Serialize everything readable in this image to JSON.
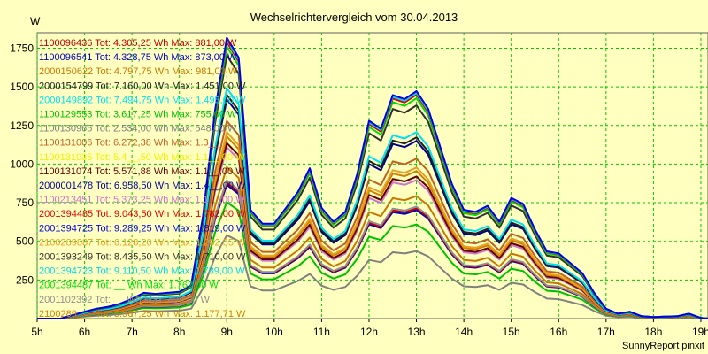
{
  "chart_data": {
    "type": "line",
    "title": "Wechselrichtervergleich vom 30.04.2013",
    "ylabel": "W",
    "footer": "SunnyReport pinxit",
    "xlim": [
      5,
      19.15
    ],
    "ylim": [
      0,
      1850
    ],
    "grid": true,
    "legend_position": "top-left",
    "x_ticks": [
      {
        "v": 5,
        "label": "5h"
      },
      {
        "v": 6,
        "label": "6h"
      },
      {
        "v": 7,
        "label": "7h"
      },
      {
        "v": 8,
        "label": "8h"
      },
      {
        "v": 9,
        "label": "9h"
      },
      {
        "v": 10,
        "label": "10h"
      },
      {
        "v": 11,
        "label": "11h"
      },
      {
        "v": 12,
        "label": "12h"
      },
      {
        "v": 13,
        "label": "13h"
      },
      {
        "v": 14,
        "label": "14h"
      },
      {
        "v": 15,
        "label": "15h"
      },
      {
        "v": 16,
        "label": "16h"
      },
      {
        "v": 17,
        "label": "17h"
      },
      {
        "v": 18,
        "label": "18h"
      },
      {
        "v": 19,
        "label": "19h"
      }
    ],
    "y_ticks": [
      250,
      500,
      750,
      1000,
      1250,
      1500,
      1750
    ],
    "x": [
      5.0,
      5.5,
      6.0,
      6.25,
      6.5,
      6.75,
      7.0,
      7.25,
      7.5,
      7.75,
      8.0,
      8.25,
      8.5,
      8.75,
      9.0,
      9.25,
      9.5,
      9.75,
      10.0,
      10.25,
      10.5,
      10.75,
      11.0,
      11.25,
      11.5,
      11.75,
      12.0,
      12.25,
      12.5,
      12.75,
      13.0,
      13.25,
      13.5,
      13.75,
      14.0,
      14.25,
      14.5,
      14.75,
      15.0,
      15.25,
      15.5,
      15.75,
      16.0,
      16.25,
      16.5,
      16.75,
      17.0,
      17.25,
      17.5,
      17.75,
      18.0,
      18.25,
      18.5,
      18.75,
      19.0,
      19.15
    ],
    "series_profile": [
      0,
      0,
      35,
      50,
      60,
      75,
      100,
      130,
      125,
      130,
      135,
      170,
      520,
      1050,
      1420,
      1320,
      550,
      480,
      480,
      560,
      640,
      760,
      560,
      490,
      540,
      730,
      1000,
      960,
      1130,
      1110,
      1150,
      1060,
      870,
      680,
      550,
      540,
      570,
      490,
      610,
      580,
      450,
      340,
      330,
      280,
      230,
      130,
      50,
      25,
      35,
      12,
      8,
      10,
      12,
      25,
      3,
      0
    ],
    "series": [
      {
        "name": "1100096436",
        "legend": "1100096436 Tot: 4.305,25 Wh Max: 881,00 W",
        "color": "#c00000",
        "scale": 0.62
      },
      {
        "name": "1100096541",
        "legend": "1100096541 Tot: 4.328,75 Wh Max: 873,00 W",
        "color": "#0000c0",
        "scale": 0.61
      },
      {
        "name": "2000150622",
        "legend": "2000150622 Tot: 4.797,75 Wh Max: 981,00 W",
        "color": "#c87800",
        "scale": 0.69
      },
      {
        "name": "2000154799",
        "legend": "2000154799 Tot: 7.160,00 Wh Max: 1.451,00 W",
        "color": "#202020",
        "scale": 1.02
      },
      {
        "name": "2000149892",
        "legend": "2000149892 Tot: 7.494,75 Wh Max: 1.495,00 W",
        "color": "#00e0f0",
        "scale": 1.05
      },
      {
        "name": "1100129553",
        "legend": "1100129553 Tot: 3.617,25 Wh Max: 755,00 W",
        "color": "#00c000",
        "scale": 0.53
      },
      {
        "name": "1100130965",
        "legend": "1100130965 Tot: 2.534,00 Wh Max: 548,00 W",
        "color": "#808080",
        "scale": 0.38
      },
      {
        "name": "1100131006",
        "legend": "1100131006 Tot: 6.272,38 Wh Max: 1.3__",
        "color": "#c06020",
        "scale": 0.9
      },
      {
        "name": "1100131035",
        "legend": "1100131035 Tot: 5.4__,50 Wh Max: 1.1__,00 W",
        "color": "#f0f000",
        "scale": 0.8
      },
      {
        "name": "1100131074",
        "legend": "1100131074 Tot: 5.571,88 Wh Max: 1.1__,00 W",
        "color": "#600000",
        "scale": 0.8
      },
      {
        "name": "2000001478",
        "legend": "2000001478 Tot: 6.958,50 Wh Max: 1.4__,00 W",
        "color": "#000090",
        "scale": 1.0
      },
      {
        "name": "1100213451",
        "legend": "1100213451 Tot: 5.373,25 Wh Max: 1.1__,00 W",
        "color": "#d070d0",
        "scale": 0.78
      },
      {
        "name": "2001394485",
        "legend": "2001394485 Tot: 9.043,50 Wh Max: 1.782,00 W",
        "color": "#e00000",
        "scale": 1.26
      },
      {
        "name": "2001394725",
        "legend": "2001394725 Tot: 9.289,25 Wh Max: 1.819,00 W",
        "color": "#0000e0",
        "scale": 1.28
      },
      {
        "name": "2100289887",
        "legend": "2100289887 Tot: 6.128,20 Wh Max: 1.202,55 W",
        "color": "#e8a020",
        "scale": 0.85
      },
      {
        "name": "2001393249",
        "legend": "2001393249 Tot: 8.435,50 Wh Max: 1.710,00 W",
        "color": "#303030",
        "scale": 1.2
      },
      {
        "name": "2001394723",
        "legend": "2001394723 Tot: 9.110,50 Wh Max: 1.789,00 W",
        "color": "#00d8e8",
        "scale": 1.27
      },
      {
        "name": "2001394487",
        "legend": "2001394487 Tot: __ Wh Max: 1.762,00 W",
        "color": "#00e000",
        "scale": 1.24
      },
      {
        "name": "2001102392",
        "legend": "2001102392 Tot: __ Wh Max: 899,00 W",
        "color": "#909090",
        "scale": 0.63
      },
      {
        "name": "2100289___",
        "legend": "2100289___ Tot: 5.967,25 Wh Max: 1.177,71 W",
        "color": "#d08000",
        "scale": 0.83
      }
    ]
  }
}
